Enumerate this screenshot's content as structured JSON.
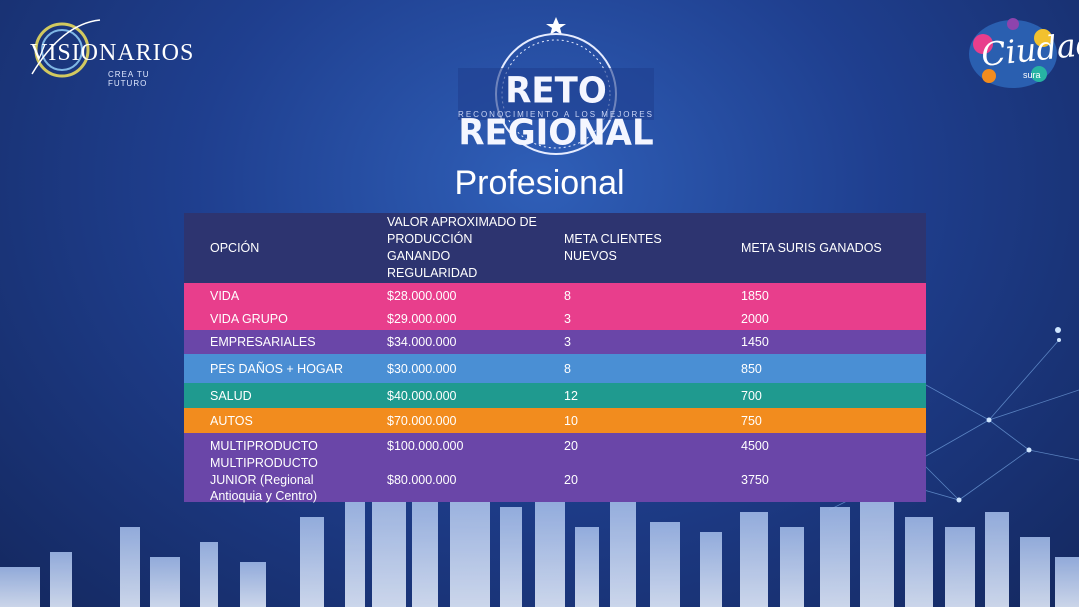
{
  "logos": {
    "left_word": "VISIONARIOS",
    "left_sub": "CREA TU FUTURO",
    "right_word": "Ciudad",
    "right_sub": "sura"
  },
  "emblem": {
    "title": "RETO REGIONAL",
    "tagline": "RECONOCIMIENTO A LOS MEJORES"
  },
  "page_title": "Profesional",
  "table": {
    "headers": [
      "OPCIÓN",
      "VALOR APROXIMADO DE PRODUCCIÓN GANANDO REGULARIDAD",
      "META CLIENTES NUEVOS",
      "META SURIS GANADOS"
    ],
    "rows": [
      {
        "option": "VIDA",
        "value": "$28.000.000",
        "clients": "8",
        "suris": "1850",
        "color": "#e83e8c"
      },
      {
        "option": "VIDA GRUPO",
        "value": "$29.000.000",
        "clients": "3",
        "suris": "2000",
        "color": "#e83e8c"
      },
      {
        "option": "EMPRESARIALES",
        "value": "$34.000.000",
        "clients": "3",
        "suris": "1450",
        "color": "#6a46a8"
      },
      {
        "option": "PES DAÑOS + HOGAR",
        "value": "$30.000.000",
        "clients": "8",
        "suris": "850",
        "color": "#4a8fd4"
      },
      {
        "option": "SALUD",
        "value": "$40.000.000",
        "clients": "12",
        "suris": "700",
        "color": "#1f9a8f"
      },
      {
        "option": "AUTOS",
        "value": "$70.000.000",
        "clients": "10",
        "suris": "750",
        "color": "#f28c1e"
      },
      {
        "option": "MULTIPRODUCTO",
        "value": "$100.000.000",
        "clients": "20",
        "suris": "4500",
        "color": "#6a46a8"
      },
      {
        "option": "MULTIPRODUCTO JUNIOR (Regional Antioquia y Centro)",
        "value": "$80.000.000",
        "clients": "20",
        "suris": "3750",
        "color": "#6a46a8"
      }
    ]
  }
}
